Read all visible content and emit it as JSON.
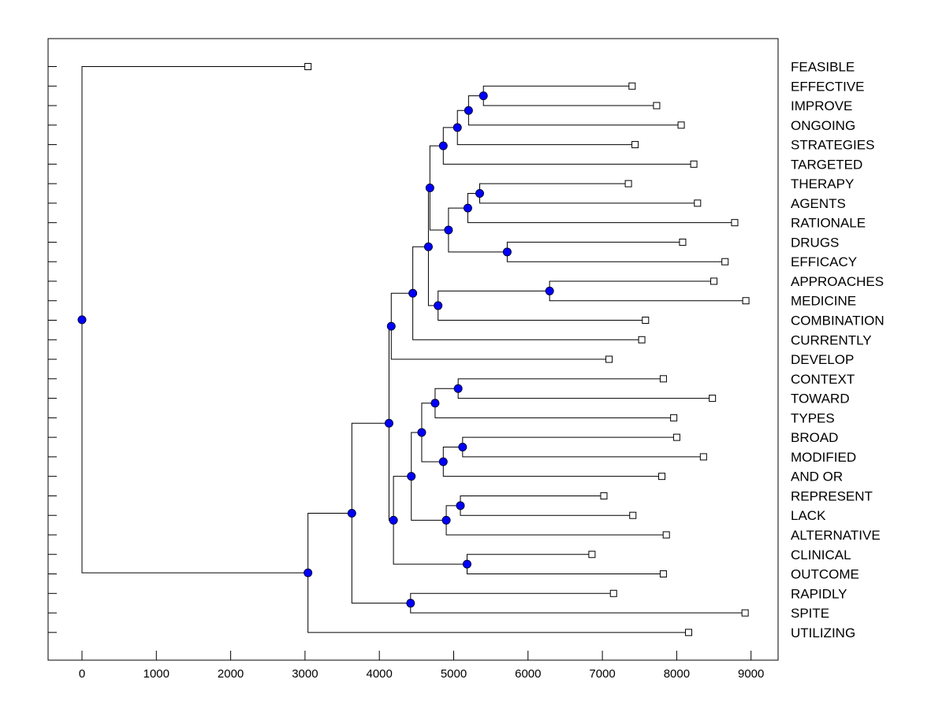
{
  "chart_data": {
    "type": "dendrogram",
    "orientation": "root-left",
    "x_axis": {
      "range": [
        -450,
        9350
      ],
      "ticks": [
        0,
        1000,
        2000,
        3000,
        4000,
        5000,
        6000,
        7000,
        8000,
        9000
      ],
      "tick_labels": [
        "0",
        "1000",
        "2000",
        "3000",
        "4000",
        "5000",
        "6000",
        "7000",
        "8000",
        "9000"
      ]
    },
    "leaves": [
      {
        "label": "FEASIBLE",
        "x": 3040
      },
      {
        "label": "EFFECTIVE",
        "x": 7400
      },
      {
        "label": "IMPROVE",
        "x": 7730
      },
      {
        "label": "ONGOING",
        "x": 8060
      },
      {
        "label": "STRATEGIES",
        "x": 7440
      },
      {
        "label": "TARGETED",
        "x": 8230
      },
      {
        "label": "THERAPY",
        "x": 7350
      },
      {
        "label": "AGENTS",
        "x": 8280
      },
      {
        "label": "RATIONALE",
        "x": 8780
      },
      {
        "label": "DRUGS",
        "x": 8080
      },
      {
        "label": "EFFICACY",
        "x": 8650
      },
      {
        "label": "APPROACHES",
        "x": 8500
      },
      {
        "label": "MEDICINE",
        "x": 8930
      },
      {
        "label": "COMBINATION",
        "x": 7580
      },
      {
        "label": "CURRENTLY",
        "x": 7530
      },
      {
        "label": "DEVELOP",
        "x": 7090
      },
      {
        "label": "CONTEXT",
        "x": 7820
      },
      {
        "label": "TOWARD",
        "x": 8480
      },
      {
        "label": "TYPES",
        "x": 7960
      },
      {
        "label": "BROAD",
        "x": 8000
      },
      {
        "label": "MODIFIED",
        "x": 8360
      },
      {
        "label": "AND OR",
        "x": 7800
      },
      {
        "label": "REPRESENT",
        "x": 7020
      },
      {
        "label": "LACK",
        "x": 7410
      },
      {
        "label": "ALTERNATIVE",
        "x": 7860
      },
      {
        "label": "CLINICAL",
        "x": 6860
      },
      {
        "label": "OUTCOME",
        "x": 7820
      },
      {
        "label": "RAPIDLY",
        "x": 7150
      },
      {
        "label": "SPITE",
        "x": 8920
      },
      {
        "label": "UTILIZING",
        "x": 8160
      }
    ],
    "merges": [
      {
        "children": [
          "l1",
          "l2"
        ],
        "x": 5400
      },
      {
        "children": [
          "n0",
          "l3"
        ],
        "x": 5200
      },
      {
        "children": [
          "n1",
          "l4"
        ],
        "x": 5050
      },
      {
        "children": [
          "n2",
          "l5"
        ],
        "x": 4860
      },
      {
        "children": [
          "l6",
          "l7"
        ],
        "x": 5350
      },
      {
        "children": [
          "n4",
          "l8"
        ],
        "x": 5190
      },
      {
        "children": [
          "l9",
          "l10"
        ],
        "x": 5720
      },
      {
        "children": [
          "n5",
          "n6"
        ],
        "x": 4930
      },
      {
        "children": [
          "n3",
          "n7"
        ],
        "x": 4680
      },
      {
        "children": [
          "l11",
          "l12"
        ],
        "x": 6290
      },
      {
        "children": [
          "n9",
          "l13"
        ],
        "x": 4790
      },
      {
        "children": [
          "n8",
          "n10"
        ],
        "x": 4660
      },
      {
        "children": [
          "n11",
          "l14"
        ],
        "x": 4450
      },
      {
        "children": [
          "n12",
          "l15"
        ],
        "x": 4160
      },
      {
        "children": [
          "l16",
          "l17"
        ],
        "x": 5060
      },
      {
        "children": [
          "n14",
          "l18"
        ],
        "x": 4750
      },
      {
        "children": [
          "l19",
          "l20"
        ],
        "x": 5120
      },
      {
        "children": [
          "n16",
          "l21"
        ],
        "x": 4860
      },
      {
        "children": [
          "n15",
          "n17"
        ],
        "x": 4570
      },
      {
        "children": [
          "l22",
          "l23"
        ],
        "x": 5090
      },
      {
        "children": [
          "n19",
          "l24"
        ],
        "x": 4900
      },
      {
        "children": [
          "n18",
          "n20"
        ],
        "x": 4430
      },
      {
        "children": [
          "l25",
          "l26"
        ],
        "x": 5180
      },
      {
        "children": [
          "n21",
          "n22"
        ],
        "x": 4190
      },
      {
        "children": [
          "n13",
          "n23"
        ],
        "x": 4130
      },
      {
        "children": [
          "l27",
          "l28"
        ],
        "x": 4420
      },
      {
        "children": [
          "n24",
          "n25"
        ],
        "x": 3630
      },
      {
        "children": [
          "n26",
          "l29"
        ],
        "x": 3040
      },
      {
        "children": [
          "l0",
          "n27"
        ],
        "x": 0
      }
    ]
  }
}
